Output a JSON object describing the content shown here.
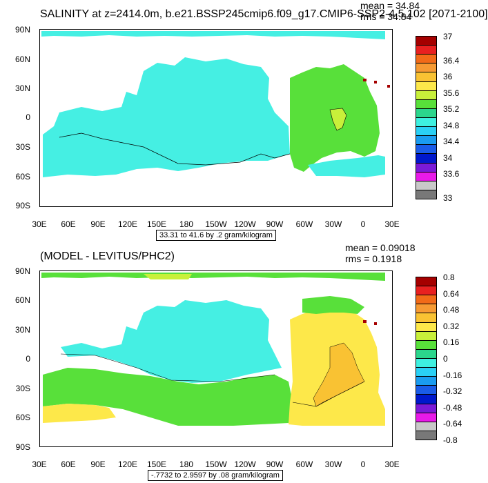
{
  "panel1": {
    "title": "SALINITY at z=2414.0m, b.e21.BSSP245cmip6.f09_g17.CMIP6-SSP2-4.5.102 [2071-2100]",
    "mean": "mean = 34.84",
    "rms": "rms = 34.84",
    "range_label": "33.31 to 41.6 by .2 gram/kilogram",
    "lat_labels": [
      "90N",
      "60N",
      "30N",
      "0",
      "30S",
      "60S",
      "90S"
    ],
    "lon_labels": [
      "30E",
      "60E",
      "90E",
      "120E",
      "150E",
      "180",
      "150W",
      "120W",
      "90W",
      "60W",
      "30W",
      "0",
      "30E"
    ],
    "colorbar_labels": [
      "37",
      "36.4",
      "36",
      "35.6",
      "35.2",
      "34.8",
      "34.4",
      "34",
      "33.6",
      "33"
    ],
    "colorbar_colors": [
      "#a50000",
      "#e82020",
      "#f26a18",
      "#f79a33",
      "#f9c233",
      "#fde84a",
      "#c8f03a",
      "#58e03a",
      "#2bd68c",
      "#3ef0e0",
      "#2ad0f5",
      "#1a9cf0",
      "#1a5ce8",
      "#0018cc",
      "#7a1ad8",
      "#e81ae8",
      "#c8c8c8",
      "#787878"
    ]
  },
  "panel2": {
    "title": "(MODEL - LEVITUS/PHC2)",
    "mean": "mean = 0.09018",
    "rms": "rms = 0.1918",
    "range_label": "-.7732 to 2.9597 by .08 gram/kilogram",
    "lat_labels": [
      "90N",
      "60N",
      "30N",
      "0",
      "30S",
      "60S",
      "90S"
    ],
    "lon_labels": [
      "30E",
      "60E",
      "90E",
      "120E",
      "150E",
      "180",
      "150W",
      "120W",
      "90W",
      "60W",
      "30W",
      "0",
      "30E"
    ],
    "colorbar_labels": [
      "0.8",
      "0.64",
      "0.48",
      "0.32",
      "0.16",
      "0",
      "-0.16",
      "-0.32",
      "-0.48",
      "-0.64",
      "-0.8"
    ],
    "colorbar_colors": [
      "#a50000",
      "#e82020",
      "#f26a18",
      "#f79a33",
      "#f9c233",
      "#fde84a",
      "#c8f03a",
      "#58e03a",
      "#2bd68c",
      "#3ef0e0",
      "#2ad0f5",
      "#1a9cf0",
      "#1a5ce8",
      "#0018cc",
      "#7a1ad8",
      "#e81ae8",
      "#c8c8c8",
      "#787878"
    ]
  }
}
